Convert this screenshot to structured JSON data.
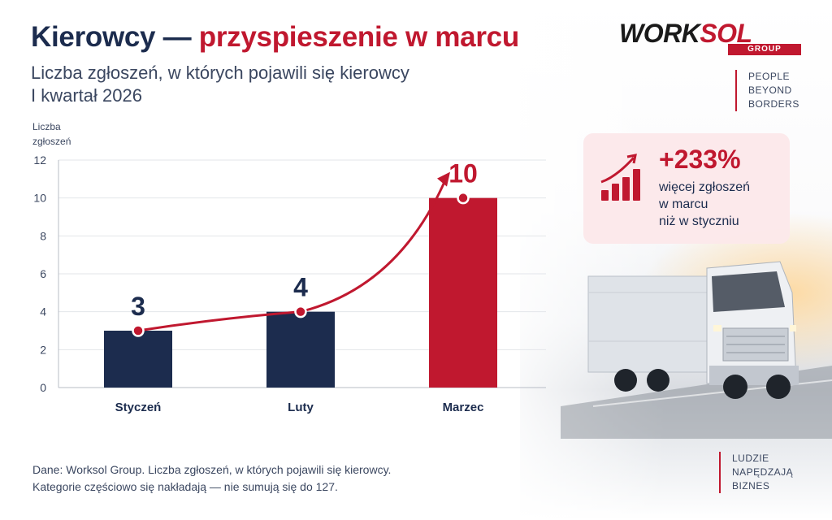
{
  "header": {
    "title_part1": "Kierowcy — ",
    "title_part2": "przyspieszenie w marcu",
    "subtitle_line1": "Liczba zgłoszeń, w których pojawili się kierowcy",
    "subtitle_line2": "I kwartał 2026"
  },
  "brand": {
    "logo_part1": "WORK",
    "logo_part2": "SOL",
    "logo_sub": "GROUP",
    "tagline": [
      "PEOPLE",
      "BEYOND",
      "BORDERS"
    ],
    "bottom_tagline": [
      "LUDZIE",
      "NAPĘDZAJĄ",
      "BIZNES"
    ],
    "accent_color": "#c0182f",
    "navy_color": "#1c2c4e"
  },
  "callout": {
    "value": "+233%",
    "text": [
      "więcej zgłoszeń",
      "w marcu",
      "niż w styczniu"
    ],
    "icon": "rising-bar-chart-icon"
  },
  "chart_data": {
    "type": "bar",
    "ylabel": [
      "Liczba",
      "zgłoszeń"
    ],
    "categories": [
      "Styczeń",
      "Luty",
      "Marzec"
    ],
    "values": [
      3,
      4,
      10
    ],
    "value_labels": [
      "3",
      "4",
      "10"
    ],
    "bar_colors": [
      "#1c2c4e",
      "#1c2c4e",
      "#c0182f"
    ],
    "yticks": [
      0,
      2,
      4,
      6,
      8,
      10,
      12
    ],
    "ylim": [
      0,
      12
    ],
    "grid": true,
    "trend_line": true
  },
  "footnote": [
    "Dane: Worksol Group. Liczba zgłoszeń, w których pojawili się kierowcy.",
    "Kategorie częściowo się nakładają — nie sumują się do 127."
  ]
}
